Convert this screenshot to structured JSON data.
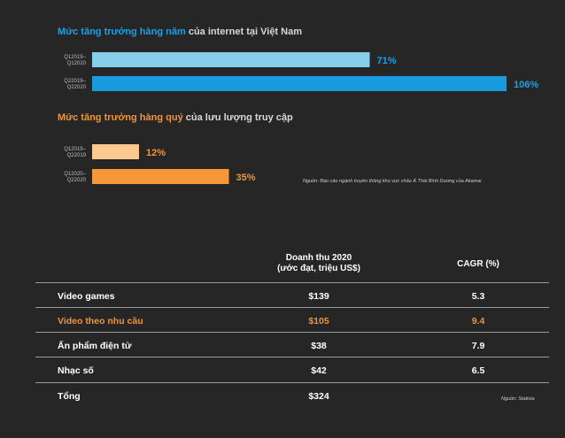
{
  "chart_data": [
    {
      "type": "bar",
      "orientation": "horizontal",
      "title_highlight": "Mức tăng trưởng hàng năm",
      "title_rest": "của internet tại Việt Nam",
      "categories": [
        "Q12019–\nQ12020",
        "Q22019–\nQ22020"
      ],
      "category_lines": [
        [
          "Q12019–",
          "Q12020"
        ],
        [
          "Q22019–",
          "Q22020"
        ]
      ],
      "values": [
        71,
        106
      ],
      "value_labels": [
        "71%",
        "106%"
      ],
      "colors": [
        "#87ceed",
        "#1a9be0"
      ],
      "label_color": "#1aa0e6",
      "xlim": [
        0,
        106
      ]
    },
    {
      "type": "bar",
      "orientation": "horizontal",
      "title_highlight": "Mức tăng trưởng hàng quý",
      "title_rest": "của lưu lượng truy cập",
      "categories": [
        "Q12019–\nQ22019",
        "Q12020–\nQ22020"
      ],
      "category_lines": [
        [
          "Q12019–",
          "Q22019"
        ],
        [
          "Q12020–",
          "Q22020"
        ]
      ],
      "values": [
        12,
        35
      ],
      "value_labels": [
        "12%",
        "35%"
      ],
      "colors": [
        "#fcc98f",
        "#f6973a"
      ],
      "label_color": "#f0943a",
      "xlim": [
        0,
        106
      ]
    }
  ],
  "source_1": "Nguồn: Báo cáo ngành truyền thông khu vực châu Á Thái Bình Dương của Akamai",
  "table": {
    "header_revenue_line1": "Doanh thu 2020",
    "header_revenue_line2": "(ước đạt, triệu US$)",
    "header_cagr": "CAGR (%)",
    "rows": [
      {
        "name": "Video games",
        "revenue": "$139",
        "cagr": "5.3",
        "highlight": false
      },
      {
        "name": "Video theo nhu cầu",
        "revenue": "$105",
        "cagr": "9.4",
        "highlight": true
      },
      {
        "name": "Ấn phẩm điện tử",
        "revenue": "$38",
        "cagr": "7.9",
        "highlight": false
      },
      {
        "name": "Nhạc số",
        "revenue": "$42",
        "cagr": "6.5",
        "highlight": false
      },
      {
        "name": "Tổng",
        "revenue": "$324",
        "cagr": "",
        "highlight": false
      }
    ]
  },
  "source_2": "Nguồn: Statista"
}
